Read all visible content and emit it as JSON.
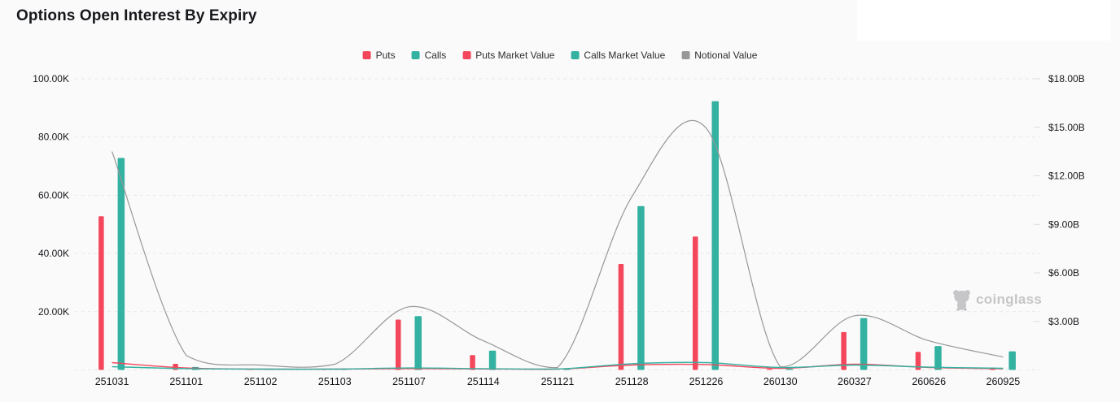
{
  "watermark": {
    "text": "coinglass"
  },
  "chart_data": {
    "type": "bar",
    "title": "Options Open Interest By Expiry",
    "categories": [
      "251031",
      "251101",
      "251102",
      "251103",
      "251107",
      "251114",
      "251121",
      "251128",
      "251226",
      "260130",
      "260327",
      "260626",
      "260925"
    ],
    "series": [
      {
        "name": "Puts",
        "type": "bar",
        "axis": "left",
        "color": "#f4475c",
        "values": [
          52.8,
          2.1,
          0.15,
          0.1,
          17.3,
          5.1,
          0.15,
          36.4,
          45.8,
          0.25,
          13.0,
          6.2,
          0.8
        ]
      },
      {
        "name": "Calls",
        "type": "bar",
        "axis": "left",
        "color": "#33b1a1",
        "values": [
          72.8,
          1.0,
          0.3,
          0.2,
          18.5,
          6.6,
          0.25,
          56.3,
          92.3,
          0.4,
          17.8,
          8.2,
          6.4
        ]
      },
      {
        "name": "Puts Market Value",
        "type": "line",
        "axis": "right",
        "color": "#f4475c",
        "values": [
          0.45,
          0.12,
          0.05,
          0.05,
          0.08,
          0.06,
          0.05,
          0.3,
          0.33,
          0.1,
          0.35,
          0.15,
          0.07
        ]
      },
      {
        "name": "Calls Market Value",
        "type": "line",
        "axis": "right",
        "color": "#33b1a1",
        "values": [
          0.2,
          0.08,
          0.05,
          0.05,
          0.12,
          0.08,
          0.06,
          0.38,
          0.45,
          0.15,
          0.3,
          0.17,
          0.1
        ]
      },
      {
        "name": "Notional Value",
        "type": "line",
        "axis": "right",
        "color": "#989898",
        "values": [
          13.5,
          0.9,
          0.3,
          0.35,
          3.9,
          1.8,
          0.15,
          10.7,
          14.95,
          0.2,
          3.35,
          1.8,
          0.8
        ]
      }
    ],
    "left_axis": {
      "lim": [
        0,
        100
      ],
      "tick_values": [
        20,
        40,
        60,
        80,
        100
      ],
      "tick_labels": [
        "20.00K",
        "40.00K",
        "60.00K",
        "80.00K",
        "100.00K"
      ]
    },
    "right_axis": {
      "lim": [
        0,
        18
      ],
      "tick_values": [
        3,
        6,
        9,
        12,
        15,
        18
      ],
      "tick_labels": [
        "$3.00B",
        "$6.00B",
        "$9.00B",
        "$12.00B",
        "$15.00B",
        "$18.00B"
      ]
    },
    "grid": {
      "horizontal": true,
      "style": "dashed"
    },
    "legend_position": "top-center"
  }
}
